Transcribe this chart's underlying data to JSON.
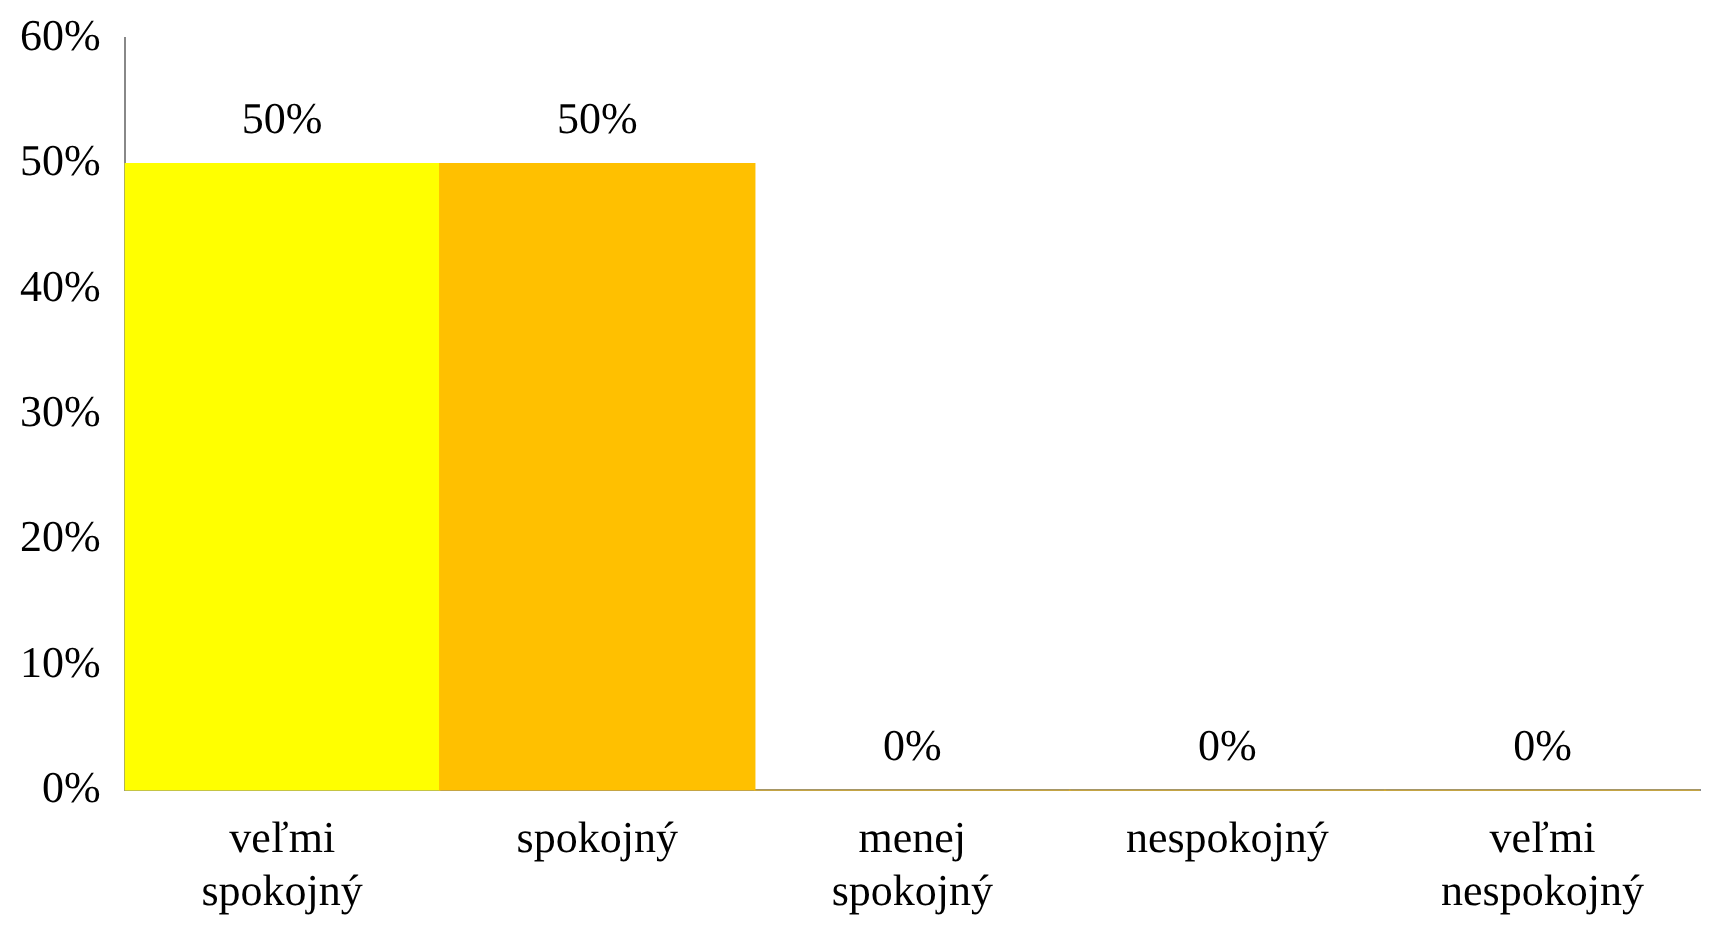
{
  "chart_data": {
    "type": "bar",
    "categories": [
      "veľmi spokojný",
      "spokojný",
      "menej spokojný",
      "nespokojný",
      "veľmi nespokojný"
    ],
    "values": [
      50,
      50,
      0,
      0,
      0
    ],
    "colors": [
      "#ffff00",
      "#ffc000",
      "#ffc000",
      "#ffc000",
      "#ffc000"
    ],
    "value_labels": [
      "50%",
      "50%",
      "0%",
      "0%",
      "0%"
    ],
    "ylim": [
      0,
      60
    ],
    "yticks": [
      {
        "value": 0,
        "label": "0%"
      },
      {
        "value": 10,
        "label": "10%"
      },
      {
        "value": 20,
        "label": "20%"
      },
      {
        "value": 30,
        "label": "30%"
      },
      {
        "value": 40,
        "label": "40%"
      },
      {
        "value": 50,
        "label": "50%"
      },
      {
        "value": 60,
        "label": "60%"
      }
    ],
    "grid": false,
    "legend": false
  }
}
